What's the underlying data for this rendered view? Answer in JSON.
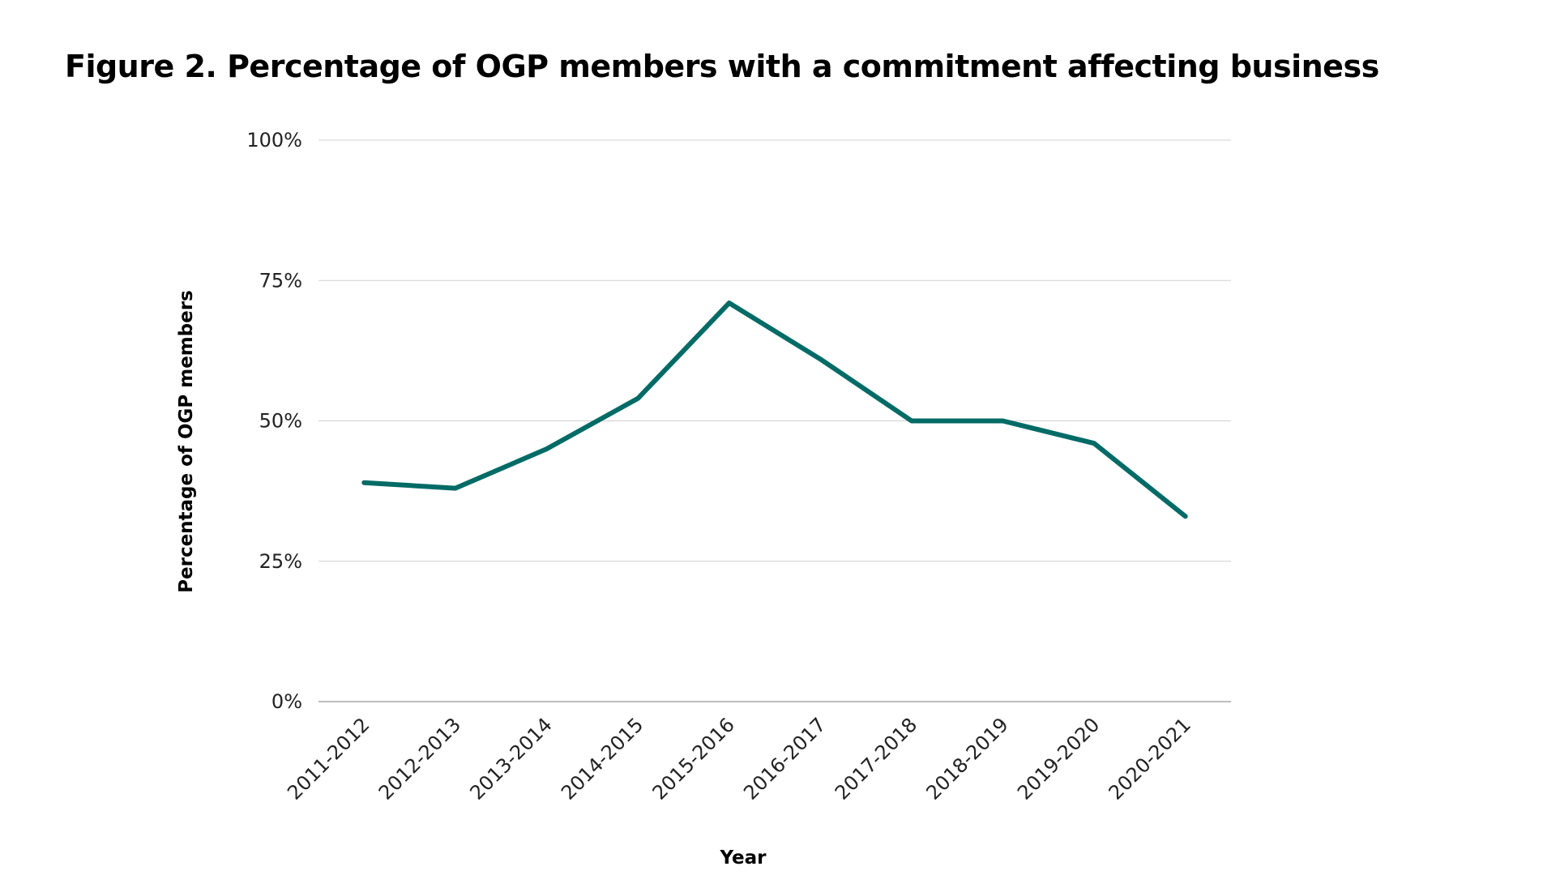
{
  "chart_data": {
    "type": "line",
    "title": "Figure 2. Percentage of OGP members with a commitment affecting business",
    "xlabel": "Year",
    "ylabel": "Percentage of OGP members",
    "categories": [
      "2011-2012",
      "2012-2013",
      "2013-2014",
      "2014-2015",
      "2015-2016",
      "2016-2017",
      "2017-2018",
      "2018-2019",
      "2019-2020",
      "2020-2021"
    ],
    "series": [
      {
        "values": [
          39,
          38,
          45,
          54,
          71,
          61,
          50,
          50,
          46,
          33
        ]
      }
    ],
    "ylim": [
      0,
      100
    ],
    "yticks": [
      0,
      25,
      50,
      75,
      100
    ],
    "ytick_labels": [
      "0%",
      "25%",
      "50%",
      "75%",
      "100%"
    ],
    "grid": true,
    "legend": "none",
    "colors": {
      "line": "#006B66",
      "grid": "#D0D0D0",
      "axis": "#A8A8A8"
    }
  }
}
